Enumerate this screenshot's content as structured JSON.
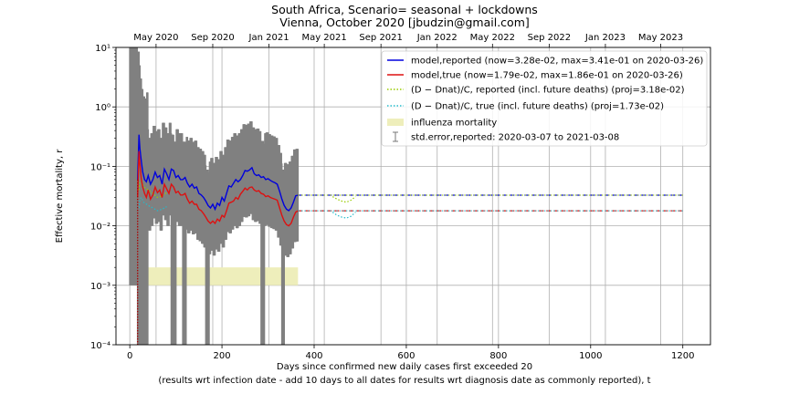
{
  "chart_data": {
    "type": "line",
    "title": "South Africa, Scenario= seasonal + lockdowns",
    "subtitle": "Vienna, October 2020 [jbudzin@gmail.com]",
    "xlabel": "Days since confirmed new daily cases first exceeded 20",
    "xlabel2": "(results wrt infection date - add 10 days to all dates for results wrt diagnosis date as commonly reported), t",
    "ylabel": "Effective mortality, r",
    "xlim": [
      -30,
      1260
    ],
    "ylim": [
      0.0001,
      10
    ],
    "yscale": "log",
    "grid": true,
    "legend_position": "top-right",
    "x_ticks": [
      {
        "value": 0,
        "label": "0"
      },
      {
        "value": 200,
        "label": "200"
      },
      {
        "value": 400,
        "label": "400"
      },
      {
        "value": 600,
        "label": "600"
      },
      {
        "value": 800,
        "label": "800"
      },
      {
        "value": 1000,
        "label": "1000"
      },
      {
        "value": 1200,
        "label": "1200"
      }
    ],
    "y_ticks": [
      {
        "value": 10,
        "label": "10¹"
      },
      {
        "value": 1,
        "label": "10⁰"
      },
      {
        "value": 0.1,
        "label": "10⁻¹"
      },
      {
        "value": 0.01,
        "label": "10⁻²"
      },
      {
        "value": 0.001,
        "label": "10⁻³"
      },
      {
        "value": 0.0001,
        "label": "10⁻⁴"
      }
    ],
    "top_ticks": [
      {
        "value": 57,
        "label": "May 2020"
      },
      {
        "value": 180,
        "label": "Sep 2020"
      },
      {
        "value": 302,
        "label": "Jan 2021"
      },
      {
        "value": 422,
        "label": "May 2021"
      },
      {
        "value": 545,
        "label": "Sep 2021"
      },
      {
        "value": 667,
        "label": "Jan 2022"
      },
      {
        "value": 787,
        "label": "May 2022"
      },
      {
        "value": 910,
        "label": "Sep 2022"
      },
      {
        "value": 1032,
        "label": "Jan 2023"
      },
      {
        "value": 1152,
        "label": "May 2023"
      }
    ],
    "influenza_band": [
      0.001,
      0.002
    ],
    "influenza_x": [
      0,
      365
    ],
    "first_day_marker_x": 17,
    "series": [
      {
        "name": "model,reported (now=3.28e-02, max=3.41e-01 on 2020-03-26)",
        "color": "#0000dd",
        "x": [
          17,
          20,
          22,
          25,
          28,
          32,
          36,
          40,
          45,
          50,
          55,
          60,
          65,
          70,
          75,
          80,
          85,
          90,
          95,
          100,
          105,
          110,
          115,
          120,
          125,
          130,
          135,
          140,
          145,
          150,
          155,
          160,
          165,
          170,
          175,
          180,
          185,
          190,
          195,
          200,
          205,
          210,
          215,
          220,
          225,
          230,
          235,
          240,
          245,
          250,
          255,
          260,
          265,
          270,
          275,
          280,
          285,
          290,
          295,
          300,
          305,
          310,
          315,
          320,
          325,
          330,
          335,
          340,
          345,
          350,
          355,
          360,
          365
        ],
        "y": [
          0.06,
          0.34,
          0.2,
          0.12,
          0.08,
          0.06,
          0.055,
          0.07,
          0.05,
          0.06,
          0.08,
          0.065,
          0.07,
          0.05,
          0.09,
          0.075,
          0.06,
          0.09,
          0.085,
          0.065,
          0.07,
          0.06,
          0.06,
          0.065,
          0.052,
          0.045,
          0.05,
          0.043,
          0.045,
          0.035,
          0.033,
          0.03,
          0.026,
          0.022,
          0.02,
          0.023,
          0.019,
          0.024,
          0.022,
          0.03,
          0.026,
          0.035,
          0.047,
          0.045,
          0.052,
          0.06,
          0.055,
          0.06,
          0.07,
          0.085,
          0.083,
          0.087,
          0.095,
          0.075,
          0.07,
          0.072,
          0.065,
          0.067,
          0.06,
          0.062,
          0.058,
          0.055,
          0.053,
          0.05,
          0.038,
          0.028,
          0.022,
          0.019,
          0.018,
          0.02,
          0.025,
          0.032,
          0.0328
        ]
      },
      {
        "name": "model,true (now=1.79e-02, max=1.86e-01 on 2020-03-26)",
        "color": "#dd1111",
        "x": [
          17,
          20,
          22,
          25,
          28,
          32,
          36,
          40,
          45,
          50,
          55,
          60,
          65,
          70,
          75,
          80,
          85,
          90,
          95,
          100,
          105,
          110,
          115,
          120,
          125,
          130,
          135,
          140,
          145,
          150,
          155,
          160,
          165,
          170,
          175,
          180,
          185,
          190,
          195,
          200,
          205,
          210,
          215,
          220,
          225,
          230,
          235,
          240,
          245,
          250,
          255,
          260,
          265,
          270,
          275,
          280,
          285,
          290,
          295,
          300,
          305,
          310,
          315,
          320,
          325,
          330,
          335,
          340,
          345,
          350,
          355,
          360,
          365
        ],
        "y": [
          0.03,
          0.18,
          0.11,
          0.06,
          0.045,
          0.035,
          0.03,
          0.04,
          0.028,
          0.033,
          0.045,
          0.036,
          0.04,
          0.03,
          0.05,
          0.042,
          0.035,
          0.05,
          0.045,
          0.036,
          0.038,
          0.033,
          0.033,
          0.035,
          0.028,
          0.024,
          0.026,
          0.023,
          0.023,
          0.019,
          0.018,
          0.016,
          0.014,
          0.012,
          0.011,
          0.012,
          0.011,
          0.013,
          0.012,
          0.015,
          0.014,
          0.018,
          0.024,
          0.025,
          0.026,
          0.03,
          0.028,
          0.034,
          0.038,
          0.043,
          0.04,
          0.044,
          0.045,
          0.04,
          0.038,
          0.039,
          0.035,
          0.034,
          0.031,
          0.032,
          0.03,
          0.029,
          0.028,
          0.027,
          0.02,
          0.015,
          0.012,
          0.0105,
          0.01,
          0.011,
          0.014,
          0.017,
          0.0179
        ]
      },
      {
        "name": "(D - D_nat)/C, reported (incl. future deaths) (proj=3.18e-02)",
        "color": "#99cc00",
        "x": [
          20,
          22,
          25,
          30,
          40,
          50,
          60,
          70,
          80
        ],
        "y": [
          0.04,
          0.055,
          0.06,
          0.045,
          0.04,
          0.035,
          0.03,
          0.032,
          0.036
        ]
      },
      {
        "name": "(D - D_nat)/C, true (incl. future deaths) (proj=1.73e-02)",
        "color": "#22bbcc",
        "x": [
          20,
          22,
          25,
          30,
          40,
          50,
          60,
          70,
          80
        ],
        "y": [
          0.02,
          0.028,
          0.03,
          0.025,
          0.022,
          0.02,
          0.018,
          0.019,
          0.021
        ]
      }
    ],
    "proj_reported": {
      "x": [
        365,
        1200
      ],
      "y": 0.0328
    },
    "proj_true": {
      "x": [
        365,
        1200
      ],
      "y": 0.0179
    },
    "dip_reported": {
      "x": [
        440,
        450,
        460,
        470,
        480,
        490
      ],
      "y": [
        0.031,
        0.028,
        0.026,
        0.025,
        0.027,
        0.031
      ]
    },
    "dip_true": {
      "x": [
        440,
        450,
        460,
        470,
        480,
        490
      ],
      "y": [
        0.017,
        0.015,
        0.014,
        0.0135,
        0.0145,
        0.017
      ]
    },
    "legend": [
      {
        "key": "reported",
        "label": "model,reported (now=3.28e-02, max=3.41e-01 on 2020-03-26)",
        "color": "#0000dd",
        "style": "solid"
      },
      {
        "key": "true",
        "label": "model,true (now=1.79e-02, max=1.86e-01 on 2020-03-26)",
        "color": "#dd1111",
        "style": "solid"
      },
      {
        "key": "proj_rep",
        "label": "(D − Dnat)/C, reported (incl. future deaths) (proj=3.18e-02)",
        "color": "#99cc00",
        "style": "dotted"
      },
      {
        "key": "proj_true",
        "label": "(D − Dnat)/C, true (incl. future deaths) (proj=1.73e-02)",
        "color": "#22bbcc",
        "style": "dotted"
      },
      {
        "key": "flu",
        "label": "influenza mortality",
        "color": "#eeeebb",
        "style": "patch"
      },
      {
        "key": "err",
        "label": "std.error,reported: 2020-03-07 to 2021-03-08",
        "color": "#777777",
        "style": "errorbar"
      }
    ],
    "error_band_color": "#808080"
  }
}
